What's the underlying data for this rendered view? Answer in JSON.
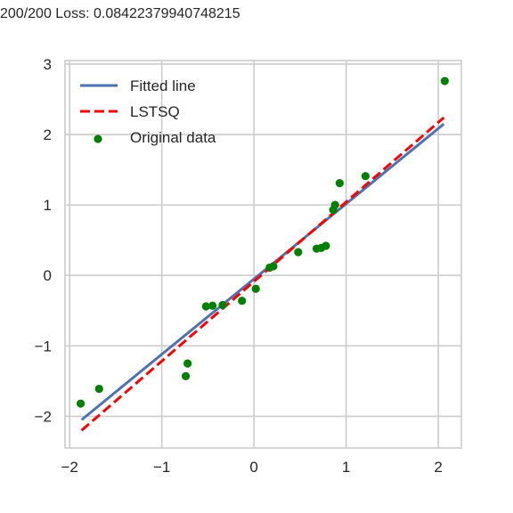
{
  "chart_data": {
    "type": "scatter",
    "title": "200/200 Loss: 0.08422379940748215",
    "xlabel": "",
    "ylabel": "",
    "xlim": [
      -2.05,
      2.25
    ],
    "ylim": [
      -2.45,
      3.05
    ],
    "x_ticks": [
      -2,
      -1,
      0,
      1,
      2
    ],
    "y_ticks": [
      -2,
      -1,
      0,
      1,
      2,
      3
    ],
    "x_tick_labels": [
      "−2",
      "−1",
      "0",
      "1",
      "2"
    ],
    "y_tick_labels": [
      "−2",
      "−1",
      "0",
      "1",
      "2",
      "3"
    ],
    "grid": true,
    "legend_position": "top-left",
    "legend": [
      {
        "label": "Fitted line",
        "kind": "solid-line",
        "color": "#4c72b0"
      },
      {
        "label": "LSTSQ",
        "kind": "dashed-line",
        "color": "#ff0000"
      },
      {
        "label": "Original data",
        "kind": "marker",
        "color": "#008000"
      }
    ],
    "series": [
      {
        "name": "Fitted line",
        "type": "line",
        "style": "solid",
        "color": "#4c72b0",
        "x": [
          -1.87,
          2.06
        ],
        "y": [
          -2.05,
          2.15
        ]
      },
      {
        "name": "LSTSQ",
        "type": "line",
        "style": "dashed",
        "color": "#ff0000",
        "x": [
          -1.87,
          2.06
        ],
        "y": [
          -2.2,
          2.24
        ]
      },
      {
        "name": "Original data",
        "type": "scatter",
        "color": "#008000",
        "x": [
          -1.88,
          -1.68,
          -0.74,
          -0.72,
          -0.52,
          -0.45,
          -0.34,
          -0.13,
          0.02,
          0.17,
          0.21,
          0.48,
          0.68,
          0.73,
          0.78,
          0.86,
          0.88,
          0.93,
          1.21,
          2.07
        ],
        "y": [
          -1.82,
          -1.61,
          -1.43,
          -1.25,
          -0.44,
          -0.43,
          -0.42,
          -0.36,
          -0.19,
          0.11,
          0.13,
          0.33,
          0.38,
          0.39,
          0.42,
          0.93,
          1.0,
          1.31,
          1.41,
          2.76
        ]
      }
    ]
  }
}
